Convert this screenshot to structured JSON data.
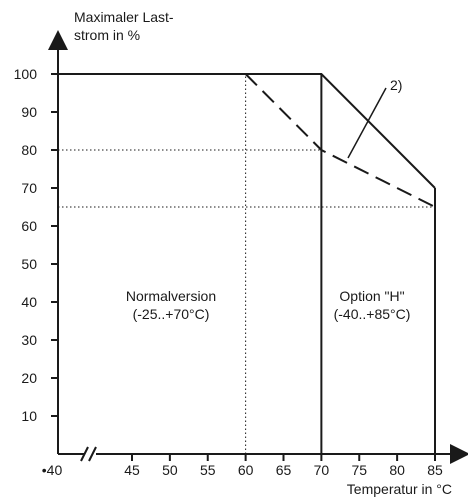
{
  "chart_data": {
    "type": "line",
    "ylabel_lines": [
      "Maximaler Last-",
      "strom in %"
    ],
    "xlabel": "Temperatur in °C",
    "ylim": [
      0,
      100
    ],
    "xlim": [
      40,
      85
    ],
    "x_break": true,
    "y_ticks": [
      10,
      20,
      30,
      40,
      50,
      60,
      70,
      80,
      90,
      100
    ],
    "x_ticks": [
      45,
      50,
      55,
      60,
      65,
      70,
      75,
      80,
      85
    ],
    "x_start_label": "•40",
    "series": [
      {
        "style": "solid",
        "points": [
          [
            40,
            100
          ],
          [
            70,
            100
          ],
          [
            85,
            70
          ]
        ]
      },
      {
        "style": "dashed",
        "points": [
          [
            60,
            100
          ],
          [
            70,
            80
          ],
          [
            85,
            65
          ]
        ]
      }
    ],
    "reference_lines": [
      {
        "axis": "x",
        "value": 60,
        "from": 0,
        "to": 100,
        "style": "dotted"
      },
      {
        "axis": "y",
        "value": 80,
        "from": 40,
        "to": 70,
        "style": "dotted"
      },
      {
        "axis": "y",
        "value": 65,
        "from": 40,
        "to": 85,
        "style": "dotted"
      },
      {
        "axis": "x",
        "value": 70,
        "from": 0,
        "to": 100,
        "style": "solid"
      },
      {
        "axis": "x",
        "value": 85,
        "from": 0,
        "to": 70,
        "style": "solid"
      }
    ],
    "regions": [
      {
        "line1": "Normalversion",
        "line2": "(-25..+70°C)"
      },
      {
        "line1": "Option \"H\"",
        "line2": "(-40..+85°C)"
      }
    ],
    "annotation": {
      "text": "2)"
    }
  }
}
